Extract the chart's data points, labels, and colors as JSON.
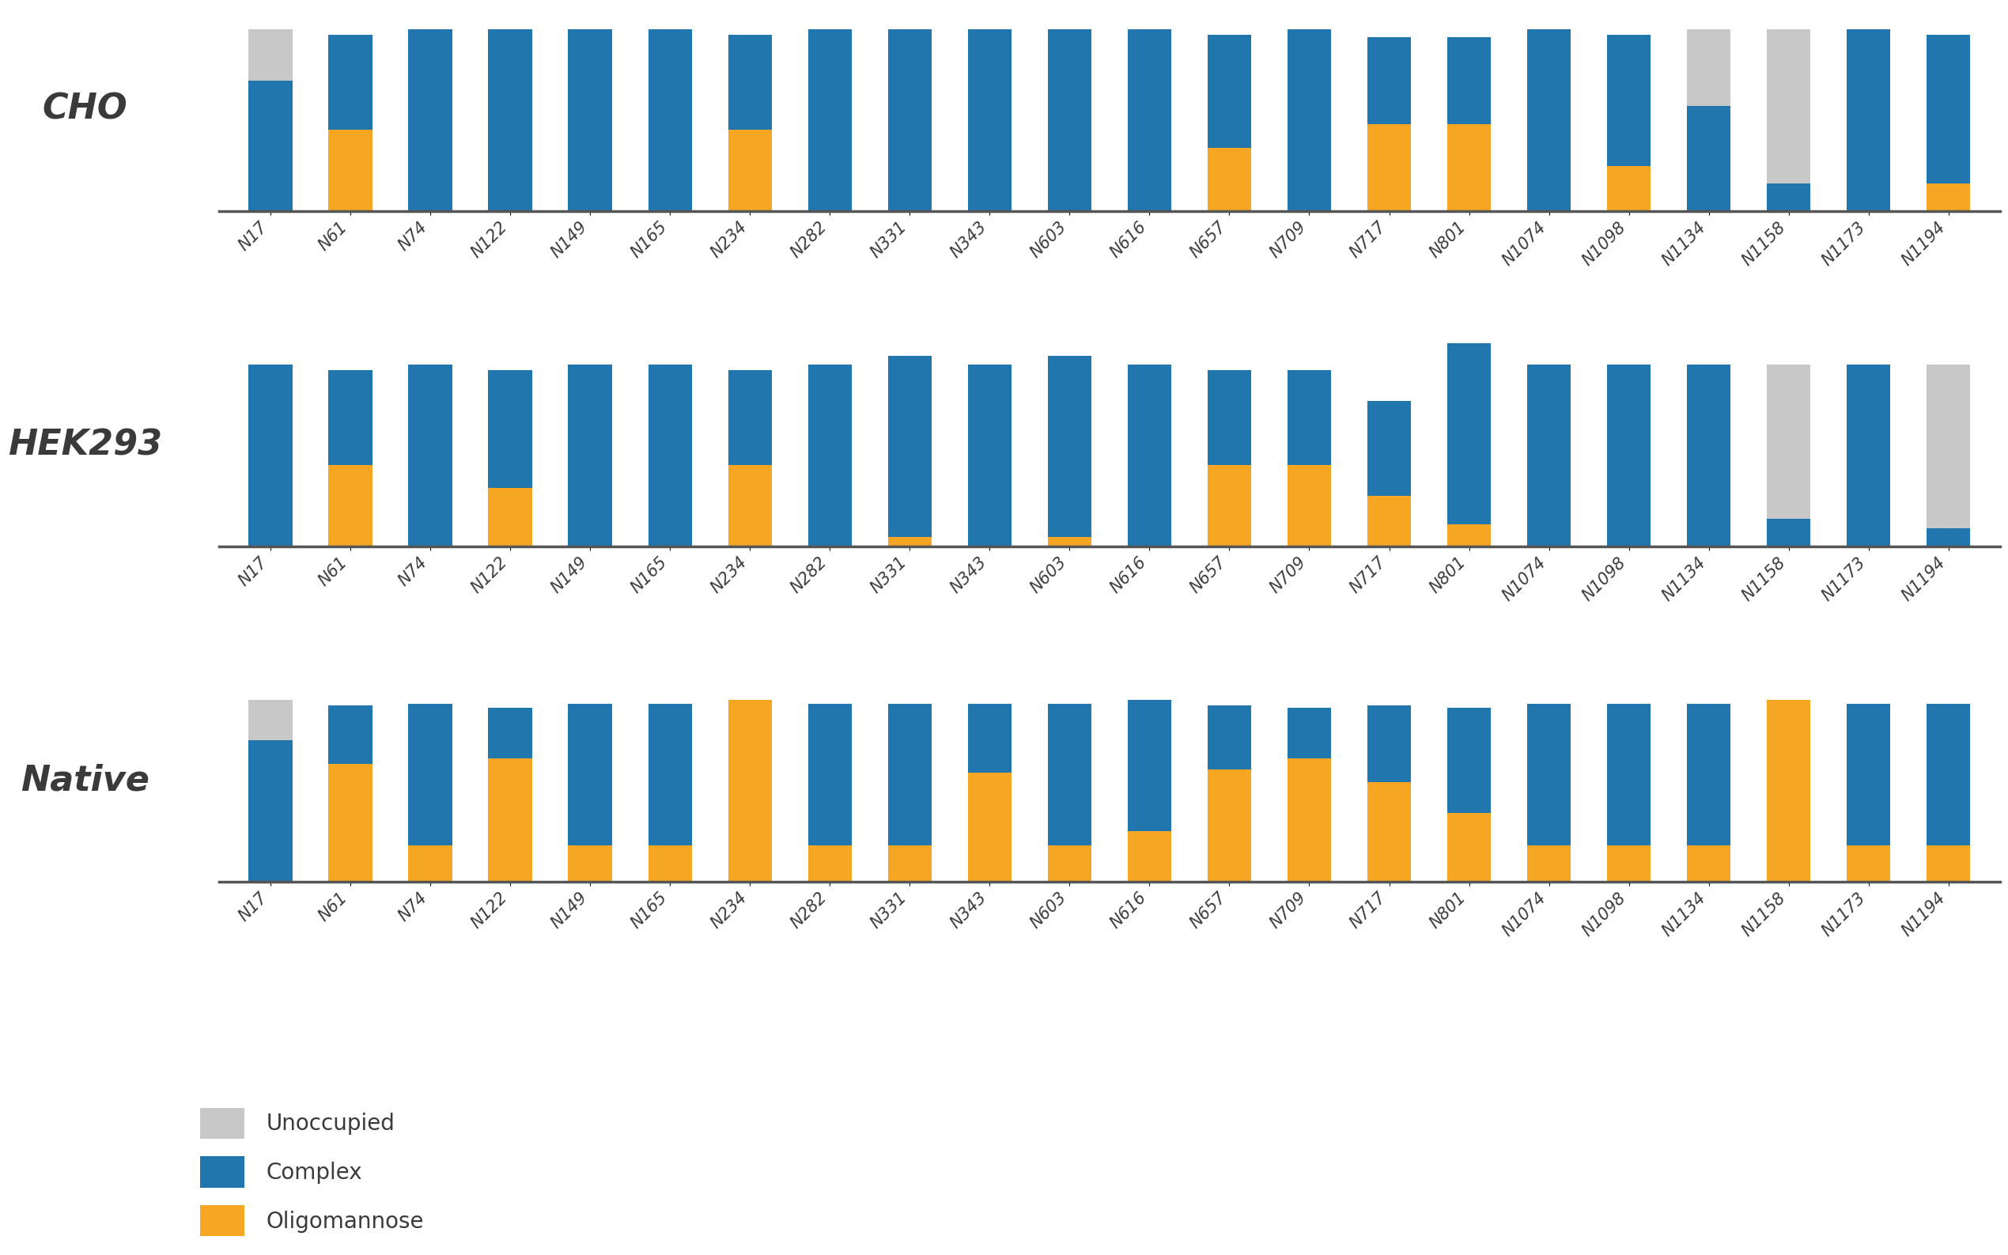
{
  "categories": [
    "N17",
    "N61",
    "N74",
    "N122",
    "N149",
    "N165",
    "N234",
    "N282",
    "N331",
    "N343",
    "N603",
    "N616",
    "N657",
    "N709",
    "N717",
    "N801",
    "N1074",
    "N1098",
    "N1134",
    "N1158",
    "N1173",
    "N1194"
  ],
  "CHO": {
    "complex": [
      0.72,
      0.52,
      1.0,
      1.0,
      1.0,
      1.0,
      0.52,
      1.0,
      1.0,
      1.0,
      1.0,
      1.0,
      0.62,
      1.0,
      0.48,
      0.48,
      1.0,
      0.72,
      0.58,
      0.15,
      1.0,
      0.82
    ],
    "oligomannose": [
      0.0,
      0.45,
      0.0,
      0.0,
      0.0,
      0.0,
      0.45,
      0.0,
      0.0,
      0.0,
      0.0,
      0.0,
      0.35,
      0.0,
      0.48,
      0.48,
      0.0,
      0.25,
      0.0,
      0.0,
      0.0,
      0.15
    ],
    "unoccupied": [
      0.28,
      0.0,
      0.0,
      0.0,
      0.0,
      0.0,
      0.0,
      0.0,
      0.0,
      0.0,
      0.0,
      0.0,
      0.0,
      0.0,
      0.0,
      0.0,
      0.0,
      0.0,
      0.42,
      0.85,
      0.0,
      0.0
    ]
  },
  "HEK293": {
    "complex": [
      1.0,
      0.52,
      1.0,
      0.65,
      1.0,
      1.0,
      0.52,
      1.0,
      1.0,
      1.0,
      1.0,
      1.0,
      0.52,
      0.52,
      0.52,
      1.0,
      1.0,
      1.0,
      1.0,
      0.15,
      1.0,
      0.1
    ],
    "oligomannose": [
      0.0,
      0.45,
      0.0,
      0.32,
      0.0,
      0.0,
      0.45,
      0.0,
      0.05,
      0.0,
      0.05,
      0.0,
      0.45,
      0.45,
      0.28,
      0.12,
      0.0,
      0.0,
      0.0,
      0.0,
      0.0,
      0.0
    ],
    "unoccupied": [
      0.0,
      0.0,
      0.0,
      0.0,
      0.0,
      0.0,
      0.0,
      0.0,
      0.0,
      0.0,
      0.0,
      0.0,
      0.0,
      0.0,
      0.0,
      0.0,
      0.0,
      0.0,
      0.0,
      0.85,
      0.0,
      0.9
    ]
  },
  "Native": {
    "complex": [
      0.78,
      0.32,
      0.78,
      0.28,
      0.78,
      0.78,
      0.0,
      0.78,
      0.78,
      0.38,
      0.78,
      0.72,
      0.35,
      0.28,
      0.42,
      0.58,
      0.78,
      0.78,
      0.78,
      0.0,
      0.78,
      0.78
    ],
    "oligomannose": [
      0.0,
      0.65,
      0.2,
      0.68,
      0.2,
      0.2,
      1.0,
      0.2,
      0.2,
      0.6,
      0.2,
      0.28,
      0.62,
      0.68,
      0.55,
      0.38,
      0.2,
      0.2,
      0.2,
      1.0,
      0.2,
      0.2
    ],
    "unoccupied": [
      0.22,
      0.0,
      0.0,
      0.0,
      0.0,
      0.0,
      0.0,
      0.0,
      0.0,
      0.0,
      0.0,
      0.0,
      0.0,
      0.0,
      0.0,
      0.0,
      0.0,
      0.0,
      0.0,
      0.0,
      0.0,
      0.0
    ]
  },
  "colors": {
    "complex": "#2176ae",
    "oligomannose": "#f5a623",
    "unoccupied": "#c8c8c8"
  },
  "panel_labels": [
    "CHO",
    "HEK293",
    "Native"
  ],
  "legend_labels": [
    "Unoccupied",
    "Complex",
    "Oligomannose"
  ],
  "background_color": "#ffffff",
  "bar_width": 0.55,
  "tick_fontsize": 15,
  "legend_fontsize": 20,
  "panel_label_fontsize": 32
}
